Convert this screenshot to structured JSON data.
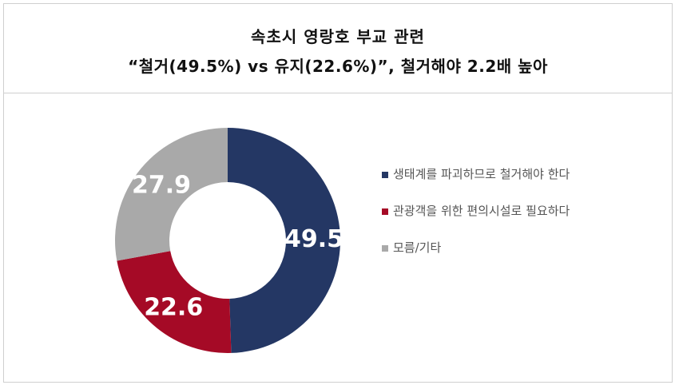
{
  "header": {
    "title_line1": "속초시 영랑호 부교 관련",
    "title_line2": "“철거(49.5%) vs 유지(22.6%)”, 철거해야 2.2배 높아"
  },
  "chart_data": {
    "type": "pie",
    "donut": true,
    "title": "속초시 영랑호 부교 관련 “철거(49.5%) vs 유지(22.6%)”, 철거해야 2.2배 높아",
    "legend_position": "right",
    "slices": [
      {
        "label": "생태계를 파괴하므로 철거해야 한다",
        "value": 49.5,
        "value_label": "49.5",
        "color": "#243764"
      },
      {
        "label": "관광객을 위한 편의시설로 필요하다",
        "value": 22.6,
        "value_label": "22.6",
        "color": "#a50a26"
      },
      {
        "label": "모름/기타",
        "value": 27.9,
        "value_label": "27.9",
        "color": "#a9a9a9"
      }
    ]
  }
}
